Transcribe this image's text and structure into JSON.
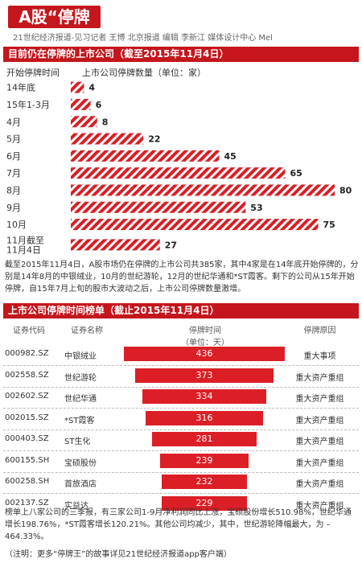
{
  "header": {
    "title": "A股“停牌王”",
    "byline": "21世纪经济报道-见习记者 王博 北京报道  编辑 李新江   媒体设计中心 Mel"
  },
  "section1": {
    "title": "目前仍在停牌的上市公司（截至2015年11月4日）",
    "col_time": "开始停牌时间",
    "col_count": "上市公司停牌数量（单位：家）"
  },
  "chart_data": [
    {
      "type": "bar",
      "orientation": "horizontal",
      "title": "目前仍在停牌的上市公司（截至2015年11月4日）",
      "categories": [
        "14年底",
        "15年1-3月",
        "4月",
        "5月",
        "6月",
        "7月",
        "8月",
        "9月",
        "10月",
        "11月截至11月4日"
      ],
      "values": [
        4,
        6,
        8,
        22,
        45,
        65,
        80,
        53,
        75,
        27
      ],
      "xmax": 80
    },
    {
      "type": "bar",
      "orientation": "horizontal",
      "title": "上市公司停牌时间榜单（截止2015年11月4日）",
      "categories": [
        "中银绒业",
        "世纪游轮",
        "世纪华通",
        "*ST霞客",
        "ST生化",
        "宝硕股份",
        "首旅酒店",
        "实益达"
      ],
      "values": [
        436,
        373,
        334,
        316,
        281,
        239,
        232,
        229
      ]
    }
  ],
  "chart1_labels": [
    [
      "14年底"
    ],
    [
      "15年1-3月"
    ],
    [
      "4月"
    ],
    [
      "5月"
    ],
    [
      "6月"
    ],
    [
      "7月"
    ],
    [
      "8月"
    ],
    [
      "9月"
    ],
    [
      "10月"
    ],
    [
      "11月截至",
      "11月4日"
    ]
  ],
  "paragraph1": "截至2015年11月4日，A股市场仍在停牌的上市公司共385家，其中4家是在14年底开始停牌的，分别是14年8月的中银绒业，10月的世纪游轮，12月的世纪华通和*ST霞客。剩下的公司从15年开始停牌，自15年7月上旬的股市大波动之后，上市公司停牌数量激增。",
  "section2": {
    "title": "上市公司停牌时间榜单（截止2015年11月4日）",
    "col_code": "证券代码",
    "col_name": "证券名称",
    "col_days": "停牌时间",
    "col_unit": "（单位：天）",
    "col_reason": "停牌原因"
  },
  "table_rows": [
    {
      "code": "000982.SZ",
      "name": "中银绒业",
      "days": 436,
      "reason": "重大事项"
    },
    {
      "code": "002558.SZ",
      "name": "世纪游轮",
      "days": 373,
      "reason": "重大资产重组"
    },
    {
      "code": "002602.SZ",
      "name": "世纪华通",
      "days": 334,
      "reason": "重大资产重组"
    },
    {
      "code": "002015.SZ",
      "name": "*ST霞客",
      "days": 316,
      "reason": "重大资产重组"
    },
    {
      "code": "000403.SZ",
      "name": "ST生化",
      "days": 281,
      "reason": "重大资产重组"
    },
    {
      "code": "600155.SH",
      "name": "宝硕股份",
      "days": 239,
      "reason": "重大资产重组"
    },
    {
      "code": "600258.SH",
      "name": "首旅酒店",
      "days": 232,
      "reason": "重大资产重组"
    },
    {
      "code": "002137.SZ",
      "name": "实益达",
      "days": 229,
      "reason": "重大资产重组"
    }
  ],
  "paragraph2": "榜单上八家公司的三季报，有三家公司1-9月净利润同比上涨，宝硕股份增长510.98%，世纪华通增长198.76%，*ST霞客增长120.21%。其他公司均减少，其中，世纪游轮降幅最大，为 –464.33%。",
  "note": "（注明：更多“停牌王”的故事详见21世纪经济报道app客户端）"
}
